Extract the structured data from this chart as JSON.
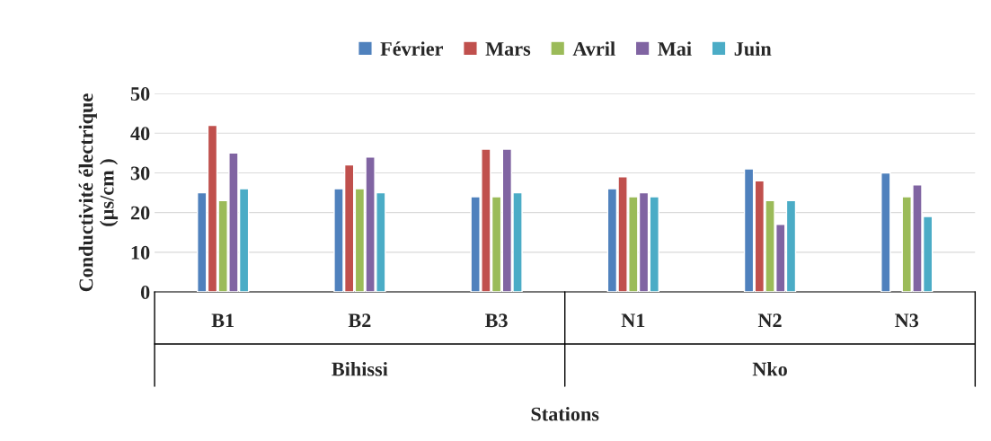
{
  "chart_data": {
    "type": "bar",
    "categories": [
      "B1",
      "B2",
      "B3",
      "N1",
      "N2",
      "N3"
    ],
    "series": [
      {
        "name": "Février",
        "color": "#4f81bd",
        "values": [
          25,
          26,
          24,
          26,
          31,
          30
        ]
      },
      {
        "name": "Mars",
        "color": "#c0504d",
        "values": [
          42,
          32,
          36,
          29,
          28,
          null
        ]
      },
      {
        "name": "Avril",
        "color": "#9bbb59",
        "values": [
          23,
          26,
          24,
          24,
          23,
          24
        ]
      },
      {
        "name": "Mai",
        "color": "#8064a2",
        "values": [
          35,
          34,
          36,
          25,
          17,
          27
        ]
      },
      {
        "name": "Juin",
        "color": "#4bacc6",
        "values": [
          26,
          25,
          25,
          24,
          23,
          19
        ]
      }
    ],
    "ylim": [
      0,
      50
    ],
    "yticks": [
      0,
      10,
      20,
      30,
      40,
      50
    ],
    "ylabel": "Conductivité électrique\n(µs/cm )",
    "xlabel": "Stations",
    "annotations": [
      "Bihissi",
      "Nko"
    ],
    "grid": "y",
    "legend": "top"
  }
}
